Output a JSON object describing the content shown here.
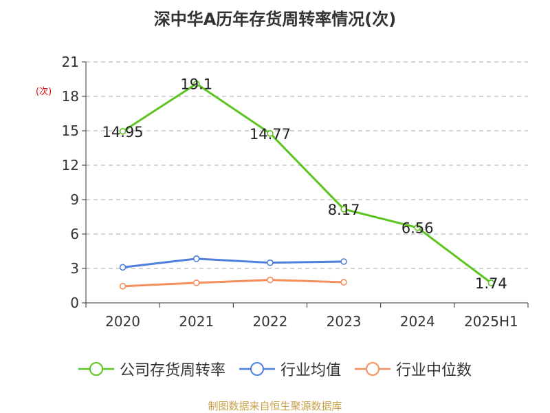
{
  "chart_data": {
    "type": "line",
    "title": "深中华A历年存货周转率情况(次)",
    "ylabel": "(次)",
    "xlabel": "",
    "categories": [
      "2020",
      "2021",
      "2022",
      "2023",
      "2024",
      "2025H1"
    ],
    "ylim": [
      0,
      21
    ],
    "yticks": [
      0,
      3,
      6,
      9,
      12,
      15,
      18,
      21
    ],
    "grid": true,
    "legend_position": "bottom",
    "series": [
      {
        "name": "公司存货周转率",
        "color": "#5cc31f",
        "values": [
          14.95,
          19.1,
          14.77,
          8.17,
          6.56,
          1.74
        ],
        "show_labels": true
      },
      {
        "name": "行业均值",
        "color": "#4e7fdc",
        "values": [
          3.1,
          3.85,
          3.5,
          3.6,
          null,
          null
        ],
        "show_labels": false
      },
      {
        "name": "行业中位数",
        "color": "#f58e5a",
        "values": [
          1.45,
          1.75,
          2.0,
          1.8,
          null,
          null
        ],
        "show_labels": false
      }
    ]
  },
  "source": "制图数据来自恒生聚源数据库"
}
